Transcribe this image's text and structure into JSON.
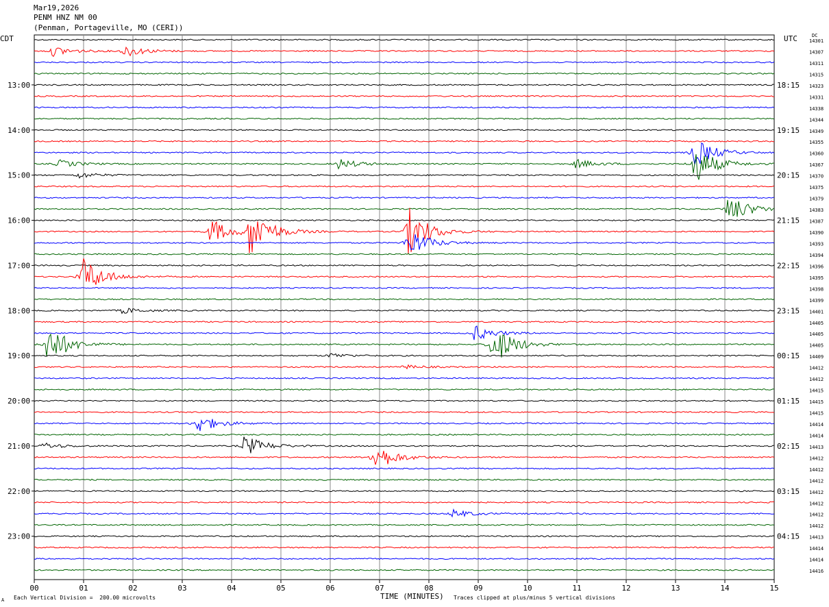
{
  "header": {
    "date": "Mar19,2026",
    "station": "PENM HNZ NM 00",
    "location": "(Penman, Portageville, MO (CERI))"
  },
  "left_tz": "CDT",
  "right_tz": "UTC",
  "dc_label": "DC",
  "footer": {
    "scale": "Each Vertical Division =  200.00 microvolts",
    "xlabel": "TIME (MINUTES)",
    "clip": "Traces clipped at plus/minus 5 vertical divisions",
    "mark": "A"
  },
  "colors": {
    "black": "#000000",
    "red": "#ff0000",
    "blue": "#0000ff",
    "green": "#006400"
  },
  "chart_data": {
    "type": "line",
    "title": "PENM HNZ NM 00",
    "xlabel": "TIME (MINUTES)",
    "x_ticks": [
      "00",
      "01",
      "02",
      "03",
      "04",
      "05",
      "06",
      "07",
      "08",
      "09",
      "10",
      "11",
      "12",
      "13",
      "14",
      "15"
    ],
    "xlim": [
      0,
      15
    ],
    "left_hour_labels": [
      "13:00",
      "14:00",
      "15:00",
      "16:00",
      "17:00",
      "18:00",
      "19:00",
      "20:00",
      "21:00",
      "22:00",
      "23:00"
    ],
    "right_hour_labels": [
      "18:15",
      "19:15",
      "20:15",
      "21:15",
      "22:15",
      "23:15",
      "00:15",
      "01:15",
      "02:15",
      "03:15",
      "04:15"
    ],
    "trace_color_cycle": [
      "black",
      "red",
      "blue",
      "green"
    ],
    "dc_offsets": [
      14301,
      14307,
      14311,
      14315,
      14323,
      14331,
      14338,
      14344,
      14349,
      14355,
      14360,
      14367,
      14370,
      14375,
      14379,
      14383,
      14387,
      14390,
      14393,
      14394,
      14396,
      14395,
      14398,
      14399,
      14401,
      14405,
      14405,
      14405,
      14409,
      14412,
      14412,
      14415,
      14415,
      14415,
      14414,
      14414,
      14413,
      14412,
      14412,
      14412,
      14412,
      14412,
      14412,
      14412,
      14413,
      14414,
      14414,
      14416
    ],
    "events": [
      {
        "trace": 1,
        "minute": 0.4,
        "amp": 1.0
      },
      {
        "trace": 1,
        "minute": 1.85,
        "amp": 1.2
      },
      {
        "trace": 10,
        "minute": 13.4,
        "amp": 3.0
      },
      {
        "trace": 11,
        "minute": 13.4,
        "amp": 4.0
      },
      {
        "trace": 11,
        "minute": 0.5,
        "amp": 0.8
      },
      {
        "trace": 11,
        "minute": 6.2,
        "amp": 1.0
      },
      {
        "trace": 11,
        "minute": 11.0,
        "amp": 0.9
      },
      {
        "trace": 12,
        "minute": 0.9,
        "amp": 0.6
      },
      {
        "trace": 15,
        "minute": 14.1,
        "amp": 3.0
      },
      {
        "trace": 17,
        "minute": 3.6,
        "amp": 2.5
      },
      {
        "trace": 17,
        "minute": 4.4,
        "amp": 5.0
      },
      {
        "trace": 17,
        "minute": 7.6,
        "amp": 5.0
      },
      {
        "trace": 18,
        "minute": 7.6,
        "amp": 3.0
      },
      {
        "trace": 21,
        "minute": 1.0,
        "amp": 4.0
      },
      {
        "trace": 24,
        "minute": 1.8,
        "amp": 0.6
      },
      {
        "trace": 26,
        "minute": 8.95,
        "amp": 1.5
      },
      {
        "trace": 27,
        "minute": 0.3,
        "amp": 4.0
      },
      {
        "trace": 27,
        "minute": 9.3,
        "amp": 4.5
      },
      {
        "trace": 28,
        "minute": 6.0,
        "amp": 0.5
      },
      {
        "trace": 29,
        "minute": 7.5,
        "amp": 0.4
      },
      {
        "trace": 34,
        "minute": 3.3,
        "amp": 2.0
      },
      {
        "trace": 36,
        "minute": 0.2,
        "amp": 0.6
      },
      {
        "trace": 36,
        "minute": 4.3,
        "amp": 2.0
      },
      {
        "trace": 37,
        "minute": 6.9,
        "amp": 3.0
      },
      {
        "trace": 42,
        "minute": 8.5,
        "amp": 0.8
      }
    ]
  }
}
